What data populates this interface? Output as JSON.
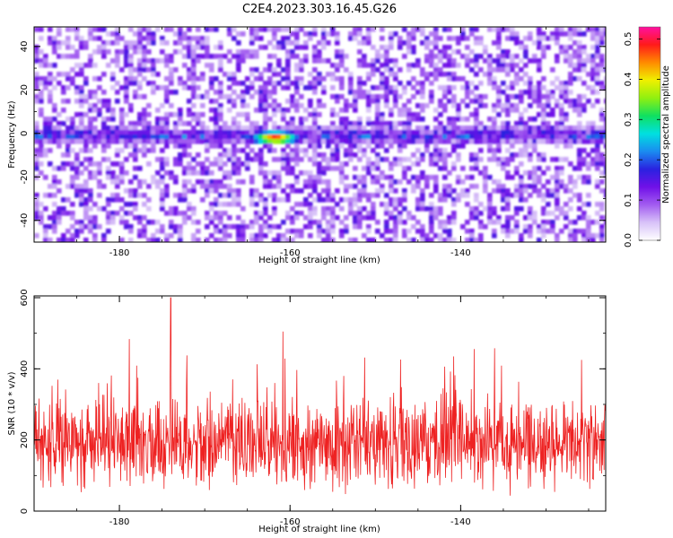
{
  "title": "C2E4.2023.303.16.45.G26",
  "colors": {
    "snr_line": "#ee2222",
    "spectrogram_scale": [
      "#ffffff",
      "#d8c2f8",
      "#a25cf0",
      "#7010e8",
      "#2a22e0",
      "#1a8cf0",
      "#00e0e0",
      "#10e060",
      "#90f010",
      "#f0f000",
      "#ff8a00",
      "#ff1a1a",
      "#ff10a0"
    ]
  },
  "chart_data": [
    {
      "type": "heatmap",
      "xlabel": "Height of straight line (km)",
      "ylabel": "Frequency (Hz)",
      "xlim": [
        -190,
        -123
      ],
      "ylim": [
        -50,
        49
      ],
      "xticks": [
        -180,
        -160,
        -140
      ],
      "yticks": [
        40,
        20,
        0,
        -20,
        -40
      ],
      "colorbar": {
        "label": "Normalized spectral amplitude",
        "range": [
          0.0,
          0.53
        ],
        "ticks": [
          0.0,
          0.1,
          0.2,
          0.3,
          0.4,
          0.5
        ],
        "tick_labels": [
          "0.0",
          "0.1",
          "0.2",
          "0.3",
          "0.4",
          "0.5"
        ]
      },
      "features": {
        "signal_band_frequency_hz": 0,
        "signal_band_halfwidth_hz": 4,
        "peak": {
          "x": -162,
          "y": -1,
          "value": 0.53
        }
      }
    },
    {
      "type": "line",
      "xlabel": "Height of straight line (km)",
      "ylabel": "SNR (10 * v/v)",
      "xlim": [
        -190,
        -123
      ],
      "ylim": [
        0,
        605
      ],
      "xticks": [
        -180,
        -160,
        -140
      ],
      "yticks": [
        0,
        200,
        400,
        600
      ],
      "series_summary": {
        "typical_range": [
          40,
          340
        ],
        "mean": 180,
        "max": 600,
        "max_at_x": -174
      }
    }
  ]
}
